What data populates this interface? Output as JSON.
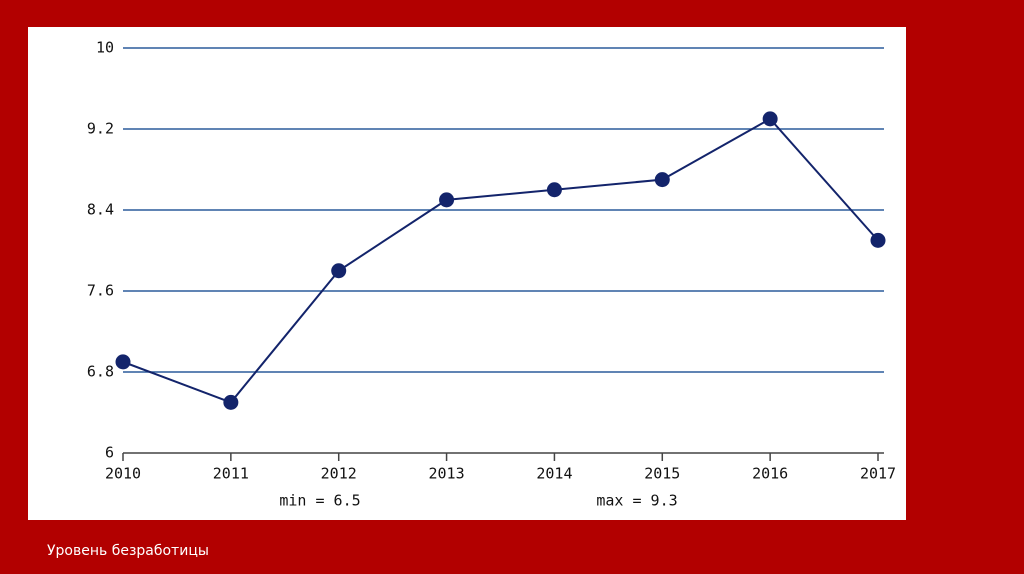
{
  "chart_data": {
    "type": "line",
    "x": [
      2010,
      2011,
      2012,
      2013,
      2014,
      2015,
      2016,
      2017
    ],
    "series": [
      {
        "color": "#13246b",
        "values": [
          6.9,
          6.5,
          7.8,
          8.5,
          8.6,
          8.7,
          9.3,
          8.1
        ]
      }
    ],
    "xlim": [
      2010,
      2017
    ],
    "xticks": [
      2010,
      2011,
      2012,
      2013,
      2014,
      2015,
      2016,
      2017
    ],
    "ylim": [
      6,
      10
    ],
    "yticks": [
      6,
      6.8,
      7.6,
      8.4,
      9.2,
      10
    ],
    "grid": true,
    "grid_color": "#2b5c9c",
    "annotations": [
      "min = 6.5",
      "max = 9.3"
    ]
  },
  "caption": "Уровень безработицы"
}
